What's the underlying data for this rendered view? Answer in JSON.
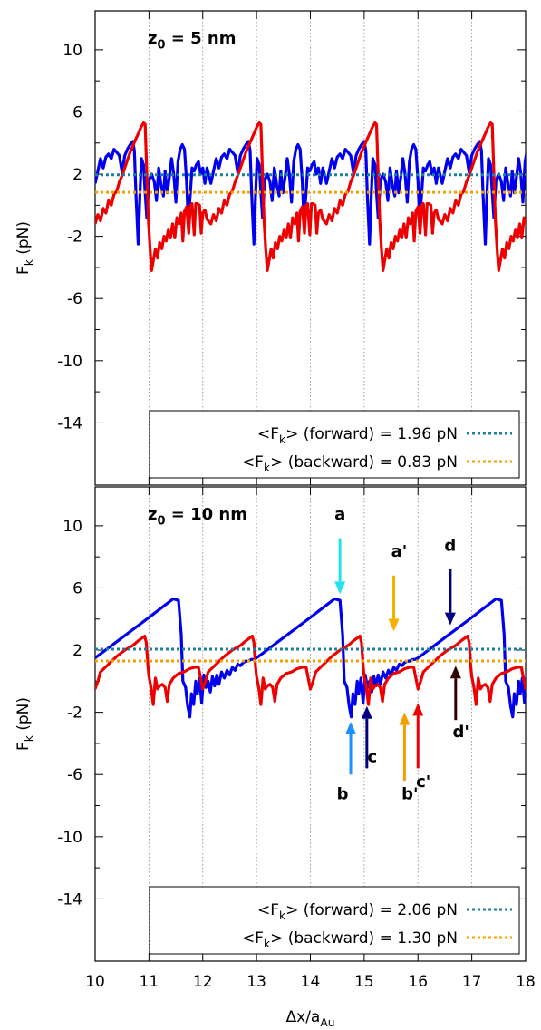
{
  "chart_data": [
    {
      "type": "line",
      "panel": "top",
      "annotation": {
        "main": "z",
        "sub": "0",
        "rest": " = 5 nm"
      },
      "ylabel": {
        "main": "F",
        "sub": "k",
        "rest": " (pN)"
      },
      "xlim": [
        10,
        18
      ],
      "ylim": [
        -18,
        12.5
      ],
      "xticks": [
        10,
        11,
        12,
        13,
        14,
        15,
        16,
        17,
        18
      ],
      "yticks": [
        10,
        6,
        2,
        -2,
        -6,
        -10,
        -14
      ],
      "ytick_labels": [
        "10",
        "6",
        "2",
        "-2",
        "-6",
        "-10",
        "-14"
      ],
      "vgrid": [
        11,
        12,
        13,
        14,
        15,
        16,
        17
      ],
      "series": [
        {
          "color": "#0000ee",
          "period": 2.15,
          "points": [
            [
              0,
              1.4
            ],
            [
              0.05,
              2.2
            ],
            [
              0.1,
              3.0
            ],
            [
              0.15,
              2.4
            ],
            [
              0.2,
              3.1
            ],
            [
              0.25,
              3.3
            ],
            [
              0.3,
              3.0
            ],
            [
              0.35,
              3.6
            ],
            [
              0.4,
              3.4
            ],
            [
              0.45,
              3.2
            ],
            [
              0.5,
              2.1
            ],
            [
              0.55,
              3.2
            ],
            [
              0.6,
              3.6
            ],
            [
              0.65,
              3.9
            ],
            [
              0.7,
              4.1
            ],
            [
              0.73,
              3.5
            ],
            [
              0.76,
              0.6
            ],
            [
              0.8,
              -2.5
            ],
            [
              0.83,
              0.5
            ],
            [
              0.86,
              3.0
            ],
            [
              0.9,
              2.6
            ],
            [
              0.93,
              0.8
            ],
            [
              0.96,
              -0.8
            ],
            [
              1.0,
              1.6
            ],
            [
              1.05,
              2.0
            ],
            [
              1.1,
              1.5
            ],
            [
              1.14,
              0.3
            ],
            [
              1.18,
              2.4
            ],
            [
              1.23,
              1.2
            ],
            [
              1.27,
              0.6
            ],
            [
              1.3,
              2.2
            ],
            [
              1.34,
              0.8
            ],
            [
              1.38,
              1.8
            ],
            [
              1.42,
              3.0
            ],
            [
              1.46,
              2.0
            ],
            [
              1.5,
              0.2
            ],
            [
              1.54,
              2.8
            ],
            [
              1.58,
              3.6
            ],
            [
              1.62,
              3.9
            ],
            [
              1.66,
              3.6
            ],
            [
              1.7,
              1.5
            ],
            [
              1.73,
              -1.0
            ],
            [
              1.77,
              0.8
            ],
            [
              1.8,
              2.4
            ],
            [
              1.84,
              2.2
            ],
            [
              1.88,
              2.6
            ],
            [
              1.92,
              2.8
            ],
            [
              1.96,
              2.0
            ],
            [
              2.0,
              2.4
            ],
            [
              2.04,
              1.4
            ],
            [
              2.08,
              2.4
            ],
            [
              2.15,
              1.4
            ]
          ]
        },
        {
          "color": "#ee0000",
          "period": 2.15,
          "points": [
            [
              0,
              -1.2
            ],
            [
              0.05,
              -0.6
            ],
            [
              0.1,
              -1.0
            ],
            [
              0.15,
              -0.2
            ],
            [
              0.2,
              -0.5
            ],
            [
              0.25,
              0.3
            ],
            [
              0.3,
              0.0
            ],
            [
              0.35,
              0.7
            ],
            [
              0.4,
              0.9
            ],
            [
              0.45,
              1.5
            ],
            [
              0.5,
              1.9
            ],
            [
              0.55,
              2.4
            ],
            [
              0.6,
              2.9
            ],
            [
              0.65,
              3.4
            ],
            [
              0.7,
              3.8
            ],
            [
              0.75,
              4.2
            ],
            [
              0.8,
              4.6
            ],
            [
              0.85,
              5.0
            ],
            [
              0.9,
              5.3
            ],
            [
              0.93,
              5.2
            ],
            [
              0.96,
              2.0
            ],
            [
              0.99,
              -1.0
            ],
            [
              1.02,
              -2.8
            ],
            [
              1.05,
              -4.2
            ],
            [
              1.08,
              -3.6
            ],
            [
              1.12,
              -2.8
            ],
            [
              1.16,
              -3.4
            ],
            [
              1.2,
              -2.4
            ],
            [
              1.24,
              -2.8
            ],
            [
              1.28,
              -2.0
            ],
            [
              1.32,
              -2.3
            ],
            [
              1.36,
              -1.6
            ],
            [
              1.4,
              -2.1
            ],
            [
              1.44,
              -1.2
            ],
            [
              1.48,
              -2.1
            ],
            [
              1.52,
              -0.8
            ],
            [
              1.56,
              -1.2
            ],
            [
              1.6,
              -0.5
            ],
            [
              1.63,
              -2.3
            ],
            [
              1.66,
              -0.4
            ],
            [
              1.7,
              -0.1
            ],
            [
              1.74,
              -1.8
            ],
            [
              1.77,
              0.0
            ],
            [
              1.8,
              0.1
            ],
            [
              1.84,
              -1.9
            ],
            [
              1.87,
              0.1
            ],
            [
              1.9,
              0.1
            ],
            [
              1.94,
              0.0
            ],
            [
              1.97,
              -1.8
            ],
            [
              2.0,
              -0.5
            ],
            [
              2.04,
              -0.3
            ],
            [
              2.08,
              -0.9
            ],
            [
              2.15,
              -1.2
            ]
          ]
        },
        {
          "color": "#1a7fa0",
          "dashed": true,
          "constant": 1.96
        },
        {
          "color": "#f5a000",
          "dashed": true,
          "constant": 0.83
        }
      ],
      "legend": [
        {
          "main": "<F",
          "sub": "k",
          "rest": "> (forward) = 1.96 pN",
          "color": "#1a7fa0"
        },
        {
          "main": "<F",
          "sub": "k",
          "rest": "> (backward) = 0.83 pN",
          "color": "#f5a000"
        }
      ]
    },
    {
      "type": "line",
      "panel": "bottom",
      "annotation": {
        "main": "z",
        "sub": "0",
        "rest": " = 10 nm"
      },
      "ylabel": {
        "main": "F",
        "sub": "k",
        "rest": " (pN)"
      },
      "xlabel": {
        "main": "Δx/a",
        "sub": "Au",
        "rest": ""
      },
      "xlim": [
        10,
        18
      ],
      "ylim": [
        -18,
        12.5
      ],
      "xticks": [
        10,
        11,
        12,
        13,
        14,
        15,
        16,
        17,
        18
      ],
      "xtick_labels": [
        "10",
        "11",
        "12",
        "13",
        "14",
        "15",
        "16",
        "17",
        "18"
      ],
      "yticks": [
        10,
        6,
        2,
        -2,
        -6,
        -10,
        -14
      ],
      "ytick_labels": [
        "10",
        "6",
        "2",
        "-2",
        "-6",
        "-10",
        "-14"
      ],
      "vgrid": [
        11,
        12,
        13,
        14,
        15,
        16,
        17
      ],
      "series": [
        {
          "color": "#0000ee",
          "period": 3.0,
          "points": [
            [
              0,
              1.5
            ],
            [
              0.5,
              2.8
            ],
            [
              1.0,
              4.1
            ],
            [
              1.3,
              4.9
            ],
            [
              1.45,
              5.3
            ],
            [
              1.55,
              5.2
            ],
            [
              1.6,
              3.0
            ],
            [
              1.63,
              0.0
            ],
            [
              1.68,
              -0.4
            ],
            [
              1.72,
              -1.6
            ],
            [
              1.76,
              -2.3
            ],
            [
              1.79,
              -0.8
            ],
            [
              1.83,
              -1.5
            ],
            [
              1.87,
              0.0
            ],
            [
              1.9,
              -0.8
            ],
            [
              1.94,
              0.2
            ],
            [
              1.98,
              -1.4
            ],
            [
              2.02,
              0.4
            ],
            [
              2.06,
              -0.4
            ],
            [
              2.1,
              0.0
            ],
            [
              2.14,
              -0.7
            ],
            [
              2.18,
              0.3
            ],
            [
              2.22,
              -0.3
            ],
            [
              2.26,
              0.4
            ],
            [
              2.3,
              -0.2
            ],
            [
              2.35,
              0.6
            ],
            [
              2.4,
              0.2
            ],
            [
              2.45,
              0.7
            ],
            [
              2.5,
              0.4
            ],
            [
              2.55,
              0.9
            ],
            [
              2.6,
              0.7
            ],
            [
              2.65,
              1.1
            ],
            [
              2.7,
              1.0
            ],
            [
              2.75,
              1.2
            ],
            [
              2.8,
              1.3
            ],
            [
              2.85,
              1.3
            ],
            [
              2.9,
              1.4
            ],
            [
              2.95,
              1.4
            ],
            [
              3.0,
              1.5
            ]
          ]
        },
        {
          "color": "#ee0000",
          "period": 2.0,
          "points": [
            [
              0,
              -0.5
            ],
            [
              0.05,
              0.0
            ],
            [
              0.1,
              0.6
            ],
            [
              0.25,
              1.1
            ],
            [
              0.4,
              1.6
            ],
            [
              0.55,
              2.0
            ],
            [
              0.7,
              2.3
            ],
            [
              0.8,
              2.6
            ],
            [
              0.88,
              2.8
            ],
            [
              0.92,
              2.9
            ],
            [
              0.95,
              2.5
            ],
            [
              0.98,
              1.0
            ],
            [
              1.0,
              0.3
            ],
            [
              1.04,
              -0.4
            ],
            [
              1.08,
              -1.5
            ],
            [
              1.12,
              0.2
            ],
            [
              1.16,
              -0.5
            ],
            [
              1.2,
              -0.3
            ],
            [
              1.25,
              -0.2
            ],
            [
              1.3,
              -0.4
            ],
            [
              1.34,
              -1.3
            ],
            [
              1.38,
              -0.2
            ],
            [
              1.45,
              0.2
            ],
            [
              1.55,
              0.5
            ],
            [
              1.65,
              0.6
            ],
            [
              1.75,
              0.8
            ],
            [
              1.85,
              0.9
            ],
            [
              1.92,
              0.9
            ],
            [
              1.96,
              0.2
            ],
            [
              2.0,
              -0.5
            ]
          ]
        },
        {
          "color": "#1a7fa0",
          "dashed": true,
          "constant": 2.06
        },
        {
          "color": "#f5a000",
          "dashed": true,
          "constant": 1.3
        }
      ],
      "arrows": [
        {
          "label": "a",
          "x": 14.55,
          "from": 9.2,
          "to": 5.6,
          "dir": "down",
          "color": "#22e2ee",
          "lx": 14.55,
          "ly": 10.4
        },
        {
          "label": "a'",
          "x": 15.55,
          "from": 6.8,
          "to": 3.2,
          "dir": "down",
          "color": "#f5b000",
          "lx": 15.65,
          "ly": 8.0
        },
        {
          "label": "d",
          "x": 16.6,
          "from": 7.2,
          "to": 3.6,
          "dir": "down",
          "color": "#000080",
          "lx": 16.6,
          "ly": 8.4
        },
        {
          "label": "b",
          "x": 14.75,
          "from": -6.0,
          "to": -2.6,
          "dir": "up",
          "color": "#1e90ff",
          "lx": 14.6,
          "ly": -7.6
        },
        {
          "label": "c",
          "x": 15.05,
          "from": -5.6,
          "to": -1.6,
          "dir": "up",
          "color": "#000080",
          "lx": 15.15,
          "ly": -5.2
        },
        {
          "label": "b'",
          "x": 15.75,
          "from": -6.4,
          "to": -2.0,
          "dir": "up",
          "color": "#f5a000",
          "lx": 15.85,
          "ly": -7.6
        },
        {
          "label": "c'",
          "x": 16.0,
          "from": -5.6,
          "to": -1.4,
          "dir": "up",
          "color": "#ee0000",
          "lx": 16.1,
          "ly": -6.8
        },
        {
          "label": "d'",
          "x": 16.7,
          "from": -2.5,
          "to": 1.0,
          "dir": "up",
          "color": "#330000",
          "lx": 16.8,
          "ly": -3.6
        }
      ],
      "legend": [
        {
          "main": "<F",
          "sub": "k",
          "rest": "> (forward) = 2.06 pN",
          "color": "#1a7fa0"
        },
        {
          "main": "<F",
          "sub": "k",
          "rest": "> (backward) = 1.30 pN",
          "color": "#f5a000"
        }
      ]
    }
  ]
}
